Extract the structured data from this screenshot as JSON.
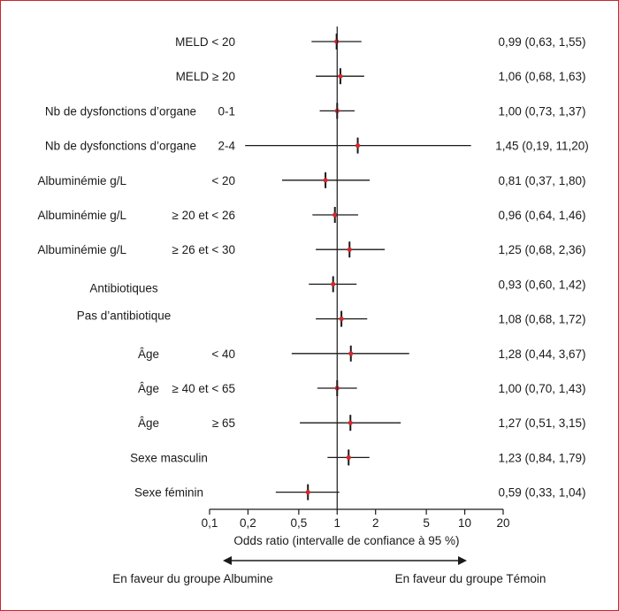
{
  "chart_data": {
    "type": "forest",
    "xlabel": "Odds ratio (intervalle de confiance à 95 %)",
    "xscale": "log",
    "xlim": [
      0.1,
      20
    ],
    "x_ticks": [
      {
        "value": 0.1,
        "label": "0,1"
      },
      {
        "value": 0.2,
        "label": "0,2"
      },
      {
        "value": 0.5,
        "label": "0,5"
      },
      {
        "value": 1,
        "label": "1"
      },
      {
        "value": 2,
        "label": "2"
      },
      {
        "value": 5,
        "label": "5"
      },
      {
        "value": 10,
        "label": "10"
      },
      {
        "value": 20,
        "label": "20"
      }
    ],
    "reference_line": 1,
    "rows": [
      {
        "label": "MELD < 20",
        "sublabel": "",
        "or": 0.99,
        "lo": 0.63,
        "hi": 1.55,
        "text": "0,99 (0,63, 1,55)"
      },
      {
        "label": "MELD ≥ 20",
        "sublabel": "",
        "or": 1.06,
        "lo": 0.68,
        "hi": 1.63,
        "text": "1,06 (0,68, 1,63)"
      },
      {
        "label": "Nb de dysfonctions d’organe",
        "sublabel": "0-1",
        "or": 1.0,
        "lo": 0.73,
        "hi": 1.37,
        "text": "1,00 (0,73, 1,37)"
      },
      {
        "label": "Nb de dysfonctions d’organe",
        "sublabel": "2-4",
        "or": 1.45,
        "lo": 0.19,
        "hi": 11.2,
        "text": "1,45 (0,19, 11,20)"
      },
      {
        "label": "Albuminémie g/L",
        "sublabel": "< 20",
        "or": 0.81,
        "lo": 0.37,
        "hi": 1.8,
        "text": "0,81 (0,37, 1,80)"
      },
      {
        "label": "Albuminémie g/L",
        "sublabel": "≥ 20 et < 26",
        "or": 0.96,
        "lo": 0.64,
        "hi": 1.46,
        "text": "0,96 (0,64, 1,46)"
      },
      {
        "label": "Albuminémie g/L",
        "sublabel": "≥ 26 et < 30",
        "or": 1.25,
        "lo": 0.68,
        "hi": 2.36,
        "text": "1,25 (0,68, 2,36)"
      },
      {
        "label": "Antibiotiques",
        "sublabel": "",
        "or": 0.93,
        "lo": 0.6,
        "hi": 1.42,
        "text": "0,93 (0,60, 1,42)"
      },
      {
        "label": "Pas d’antibiotique",
        "sublabel": "",
        "or": 1.08,
        "lo": 0.68,
        "hi": 1.72,
        "text": "1,08 (0,68, 1,72)"
      },
      {
        "label": "Âge",
        "sublabel": "< 40",
        "or": 1.28,
        "lo": 0.44,
        "hi": 3.67,
        "text": "1,28 (0,44, 3,67)"
      },
      {
        "label": "Âge",
        "sublabel": "≥ 40 et < 65",
        "or": 1.0,
        "lo": 0.7,
        "hi": 1.43,
        "text": "1,00 (0,70, 1,43)"
      },
      {
        "label": "Âge",
        "sublabel": "≥ 65",
        "or": 1.27,
        "lo": 0.51,
        "hi": 3.15,
        "text": "1,27 (0,51, 3,15)"
      },
      {
        "label": "Sexe masculin",
        "sublabel": "",
        "or": 1.23,
        "lo": 0.84,
        "hi": 1.79,
        "text": "1,23 (0,84, 1,79)"
      },
      {
        "label": "Sexe féminin",
        "sublabel": "",
        "or": 0.59,
        "lo": 0.33,
        "hi": 1.04,
        "text": "0,59 (0,33, 1,04)"
      }
    ],
    "favors_left": "En faveur du groupe Albumine",
    "favors_right": "En faveur du groupe Témoin",
    "colors": {
      "point": "#d7262e",
      "line": "#1a1a1a",
      "frame": "#c9252c"
    }
  }
}
